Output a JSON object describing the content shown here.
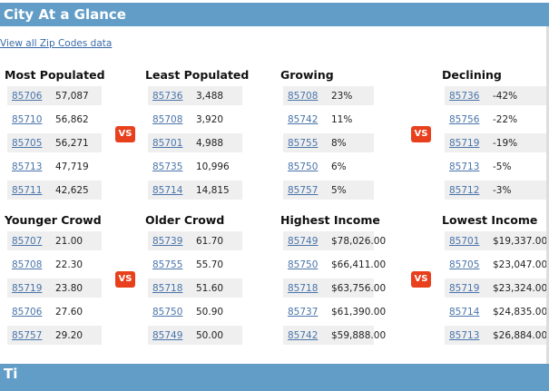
{
  "header": {
    "title": "City At a Glance"
  },
  "view_all_link": "View all Zip Codes data",
  "groups": [
    {
      "title": "Most Populated",
      "rows": [
        {
          "zip": "85706",
          "value": "57,087"
        },
        {
          "zip": "85710",
          "value": "56,862"
        },
        {
          "zip": "85705",
          "value": "56,271"
        },
        {
          "zip": "85713",
          "value": "47,719"
        },
        {
          "zip": "85711",
          "value": "42,625"
        }
      ]
    },
    {
      "title": "Least Populated",
      "rows": [
        {
          "zip": "85736",
          "value": "3,488"
        },
        {
          "zip": "85708",
          "value": "3,920"
        },
        {
          "zip": "85701",
          "value": "4,988"
        },
        {
          "zip": "85735",
          "value": "10,996"
        },
        {
          "zip": "85714",
          "value": "14,815"
        }
      ]
    },
    {
      "title": "Growing",
      "rows": [
        {
          "zip": "85708",
          "value": "23%"
        },
        {
          "zip": "85742",
          "value": "11%"
        },
        {
          "zip": "85755",
          "value": "8%"
        },
        {
          "zip": "85750",
          "value": "6%"
        },
        {
          "zip": "85757",
          "value": "5%"
        }
      ]
    },
    {
      "title": "Declining",
      "rows": [
        {
          "zip": "85736",
          "value": "-42%"
        },
        {
          "zip": "85756",
          "value": "-22%"
        },
        {
          "zip": "85719",
          "value": "-19%"
        },
        {
          "zip": "85713",
          "value": "-5%"
        },
        {
          "zip": "85712",
          "value": "-3%"
        }
      ]
    },
    {
      "title": "Younger Crowd",
      "rows": [
        {
          "zip": "85707",
          "value": "21.00"
        },
        {
          "zip": "85708",
          "value": "22.30"
        },
        {
          "zip": "85719",
          "value": "23.80"
        },
        {
          "zip": "85706",
          "value": "27.60"
        },
        {
          "zip": "85757",
          "value": "29.20"
        }
      ]
    },
    {
      "title": "Older Crowd",
      "rows": [
        {
          "zip": "85739",
          "value": "61.70"
        },
        {
          "zip": "85755",
          "value": "55.70"
        },
        {
          "zip": "85718",
          "value": "51.60"
        },
        {
          "zip": "85750",
          "value": "50.90"
        },
        {
          "zip": "85749",
          "value": "50.00"
        }
      ]
    },
    {
      "title": "Highest Income",
      "rows": [
        {
          "zip": "85749",
          "value": "$78,026.00"
        },
        {
          "zip": "85750",
          "value": "$66,411.00"
        },
        {
          "zip": "85718",
          "value": "$63,756.00"
        },
        {
          "zip": "85737",
          "value": "$61,390.00"
        },
        {
          "zip": "85742",
          "value": "$59,888.00"
        }
      ]
    },
    {
      "title": "Lowest Income",
      "rows": [
        {
          "zip": "85701",
          "value": "$19,337.00"
        },
        {
          "zip": "85705",
          "value": "$23,047.00"
        },
        {
          "zip": "85719",
          "value": "$23,324.00"
        },
        {
          "zip": "85714",
          "value": "$24,835.00"
        },
        {
          "zip": "85713",
          "value": "$26,884.00"
        }
      ]
    }
  ],
  "vs_label": "VS",
  "next_section": {
    "title": "Ti"
  },
  "colors": {
    "header": "#629dc8",
    "vs": "#e8401c",
    "link": "#4a74aa"
  }
}
